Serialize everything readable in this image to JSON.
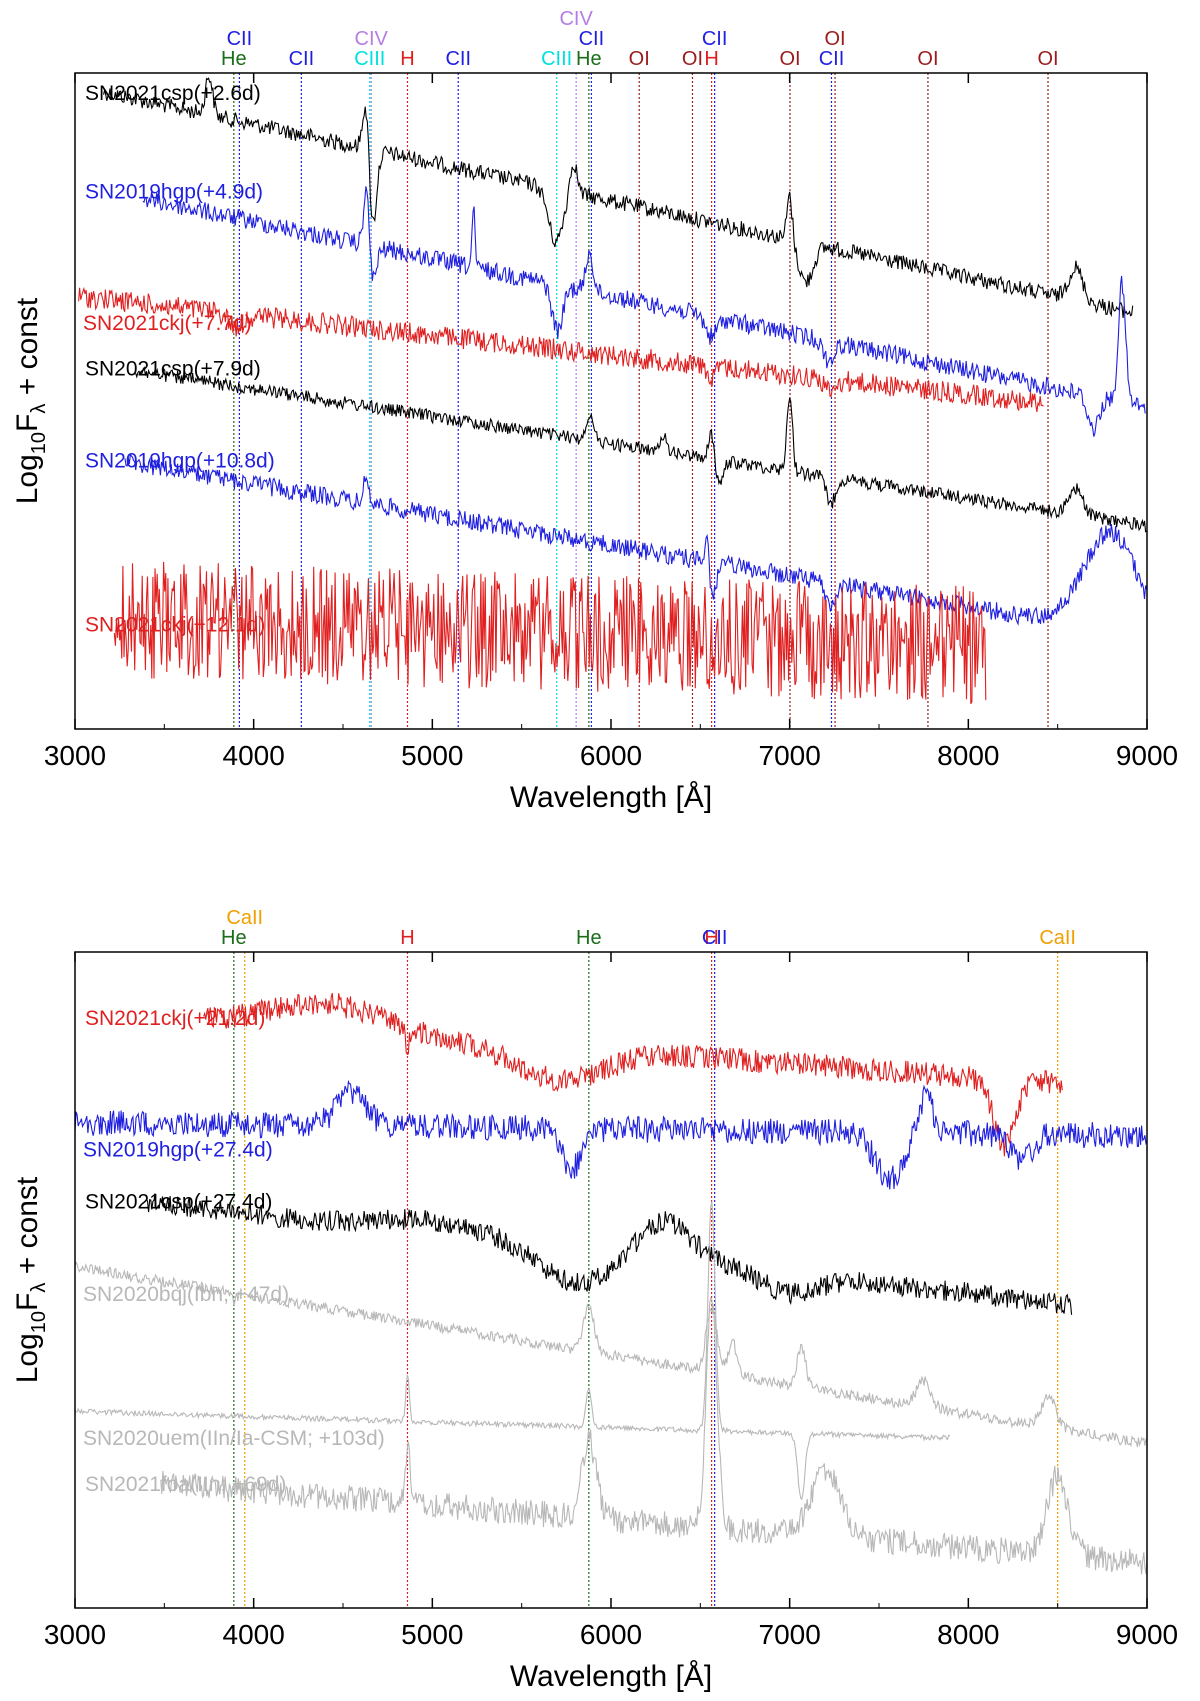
{
  "chart_data": [
    {
      "type": "line",
      "panel": "top",
      "xlabel": "Wavelength [Å]",
      "ylabel_main": "Log",
      "ylabel_sub": "10",
      "ylabel_main2": "F",
      "ylabel_sub2": "λ",
      "ylabel_tail": " + const",
      "xlim": [
        3000,
        9000
      ],
      "xticks": [
        "3000",
        "4000",
        "5000",
        "6000",
        "7000",
        "8000",
        "9000"
      ],
      "line_ids": [
        {
          "label": "He",
          "wavelength": 3889,
          "color": "#1a6e1a",
          "row": 0
        },
        {
          "label": "CII",
          "wavelength": 3920,
          "color": "#1f1fe0",
          "row": 1
        },
        {
          "label": "CII",
          "wavelength": 4267,
          "color": "#1f1fe0",
          "row": 0
        },
        {
          "label": "CIII",
          "wavelength": 4650,
          "color": "#00e0e0",
          "row": 0
        },
        {
          "label": "CIV",
          "wavelength": 4658,
          "color": "#b47ee5",
          "row": 1
        },
        {
          "label": "H",
          "wavelength": 4861,
          "color": "#e02020",
          "row": 0
        },
        {
          "label": "CII",
          "wavelength": 5145,
          "color": "#1f1fe0",
          "row": 0
        },
        {
          "label": "CIII",
          "wavelength": 5696,
          "color": "#00e0e0",
          "row": 0
        },
        {
          "label": "CIV",
          "wavelength": 5805,
          "color": "#b47ee5",
          "row": 2
        },
        {
          "label": "CII",
          "wavelength": 5890,
          "color": "#1f1fe0",
          "row": 1
        },
        {
          "label": "He",
          "wavelength": 5876,
          "color": "#1a6e1a",
          "row": 0
        },
        {
          "label": "OI",
          "wavelength": 6158,
          "color": "#9b1c1c",
          "row": 0
        },
        {
          "label": "OI",
          "wavelength": 6456,
          "color": "#9b1c1c",
          "row": 0
        },
        {
          "label": "H",
          "wavelength": 6563,
          "color": "#e02020",
          "row": 0
        },
        {
          "label": "CII",
          "wavelength": 6580,
          "color": "#1f1fe0",
          "row": 1
        },
        {
          "label": "OI",
          "wavelength": 7002,
          "color": "#9b1c1c",
          "row": 0
        },
        {
          "label": "CII",
          "wavelength": 7234,
          "color": "#1f1fe0",
          "row": 0
        },
        {
          "label": "OI",
          "wavelength": 7254,
          "color": "#9b1c1c",
          "row": 1
        },
        {
          "label": "OI",
          "wavelength": 7774,
          "color": "#9b1c1c",
          "row": 0
        },
        {
          "label": "OI",
          "wavelength": 8446,
          "color": "#9b1c1c",
          "row": 0
        }
      ],
      "series": [
        {
          "name": "SN2021csp(+2.6d)",
          "color": "#000000",
          "start": 3160,
          "end": 8920,
          "y_start": 0.02,
          "slope": 0.35,
          "noise": 0.012,
          "features": [
            [
              3750,
              -0.06,
              20
            ],
            [
              4630,
              -0.09,
              18
            ],
            [
              4665,
              0.12,
              22
            ],
            [
              5690,
              0.08,
              40
            ],
            [
              5790,
              -0.05,
              20
            ],
            [
              7000,
              -0.07,
              15
            ],
            [
              7090,
              0.06,
              40
            ],
            [
              8600,
              -0.05,
              40
            ]
          ]
        },
        {
          "name": "SN2019hgp(+4.9d)",
          "color": "#1f1fe0",
          "start": 3380,
          "end": 8990,
          "y_start": 0.17,
          "slope": 0.34,
          "noise": 0.014,
          "features": [
            [
              4630,
              -0.09,
              15
            ],
            [
              4670,
              0.05,
              20
            ],
            [
              5230,
              -0.09,
              8
            ],
            [
              5700,
              0.07,
              30
            ],
            [
              5880,
              -0.06,
              20
            ],
            [
              6560,
              0.03,
              30
            ],
            [
              7220,
              0.03,
              30
            ],
            [
              8700,
              0.05,
              30
            ],
            [
              8860,
              -0.18,
              20
            ]
          ]
        },
        {
          "name": "SN2021ckj(+7.7d)",
          "color": "#e02020",
          "start": 3020,
          "end": 8420,
          "y_start": 0.34,
          "slope": 0.18,
          "noise": 0.016,
          "features": [
            [
              3900,
              0.02,
              40
            ],
            [
              6563,
              0.02,
              20
            ],
            [
              7230,
              0.02,
              30
            ]
          ]
        },
        {
          "name": "SN2021csp(+7.9d)",
          "color": "#000000",
          "start": 3340,
          "end": 9000,
          "y_start": 0.44,
          "slope": 0.25,
          "noise": 0.01,
          "features": [
            [
              5880,
              -0.04,
              20
            ],
            [
              6300,
              -0.03,
              15
            ],
            [
              6563,
              -0.05,
              18
            ],
            [
              6600,
              0.04,
              25
            ],
            [
              7000,
              -0.12,
              15
            ],
            [
              7230,
              0.04,
              25
            ],
            [
              8600,
              -0.04,
              40
            ]
          ]
        },
        {
          "name": "SN2019hgp(+10.8d)",
          "color": "#1f1fe0",
          "start": 3280,
          "end": 9000,
          "y_start": 0.58,
          "slope": 0.28,
          "noise": 0.014,
          "features": [
            [
              4630,
              -0.04,
              15
            ],
            [
              6560,
              0.06,
              25
            ],
            [
              6540,
              -0.08,
              12
            ],
            [
              7230,
              0.04,
              25
            ],
            [
              8800,
              -0.15,
              150
            ]
          ]
        },
        {
          "name": "SN2021ckj(+12.1d)",
          "color": "#e02020",
          "start": 3220,
          "end": 8100,
          "y_start": 0.83,
          "slope": 0.05,
          "noise": 0.09,
          "features": []
        }
      ]
    },
    {
      "type": "line",
      "panel": "bottom",
      "xlabel": "Wavelength [Å]",
      "ylabel_main": "Log",
      "ylabel_sub": "10",
      "ylabel_main2": "F",
      "ylabel_sub2": "λ",
      "ylabel_tail": " + const",
      "xlim": [
        3000,
        9000
      ],
      "xticks": [
        "3000",
        "4000",
        "5000",
        "6000",
        "7000",
        "8000",
        "9000"
      ],
      "line_ids": [
        {
          "label": "He",
          "wavelength": 3889,
          "color": "#1a6e1a",
          "row": 0
        },
        {
          "label": "CaII",
          "wavelength": 3950,
          "color": "#f0a000",
          "row": 1
        },
        {
          "label": "H",
          "wavelength": 4861,
          "color": "#e02020",
          "row": 0
        },
        {
          "label": "He",
          "wavelength": 5876,
          "color": "#1a6e1a",
          "row": 0
        },
        {
          "label": "H",
          "wavelength": 6563,
          "color": "#e02020",
          "row": 0
        },
        {
          "label": "CII",
          "wavelength": 6580,
          "color": "#1f1fe0",
          "row": 0
        },
        {
          "label": "CaII",
          "wavelength": 8500,
          "color": "#f0a000",
          "row": 0
        }
      ],
      "series": [
        {
          "name": "SN2021ckj(+21.2d)",
          "color": "#e02020",
          "start": 3720,
          "end": 8530,
          "y_start": 0.09,
          "slope": 0.12,
          "noise": 0.018,
          "features": [
            [
              4400,
              -0.04,
              300
            ],
            [
              5700,
              0.05,
              250
            ],
            [
              4861,
              0.05,
              8
            ],
            [
              8200,
              0.1,
              60
            ]
          ]
        },
        {
          "name": "SN2019hgp(+27.4d)",
          "color": "#1f1fe0",
          "start": 3000,
          "end": 9000,
          "y_start": 0.26,
          "slope": 0.02,
          "noise": 0.02,
          "features": [
            [
              4550,
              -0.05,
              80
            ],
            [
              5780,
              0.06,
              60
            ],
            [
              6550,
              0.0,
              40
            ],
            [
              7560,
              0.07,
              80
            ],
            [
              7760,
              -0.06,
              40
            ],
            [
              8300,
              0.04,
              60
            ]
          ]
        },
        {
          "name": "SN2021csp(+27.4d)",
          "color": "#000000",
          "start": 3400,
          "end": 8580,
          "y_start": 0.37,
          "slope": 0.18,
          "noise": 0.016,
          "features": [
            [
              5000,
              -0.02,
              300
            ],
            [
              5800,
              0.05,
              200
            ],
            [
              6300,
              -0.06,
              150
            ],
            [
              7000,
              0.03,
              150
            ]
          ]
        },
        {
          "name": "SN2020bqj(Ibn; +47d)",
          "color": "#b8b8b8",
          "start": 3000,
          "end": 9000,
          "y_start": 0.48,
          "slope": 0.27,
          "noise": 0.008,
          "features": [
            [
              3889,
              0.01,
              20
            ],
            [
              5876,
              -0.07,
              30
            ],
            [
              6563,
              -0.1,
              30
            ],
            [
              6680,
              -0.05,
              25
            ],
            [
              7065,
              -0.06,
              25
            ],
            [
              7750,
              -0.04,
              40
            ],
            [
              8450,
              -0.05,
              40
            ]
          ]
        },
        {
          "name": "SN2020uem(IIn/Ia-CSM; +103d)",
          "color": "#b8b8b8",
          "start": 3000,
          "end": 7900,
          "y_start": 0.7,
          "slope": 0.05,
          "noise": 0.004,
          "features": [
            [
              4861,
              -0.07,
              10
            ],
            [
              5876,
              -0.06,
              15
            ],
            [
              6563,
              -0.35,
              20
            ],
            [
              7065,
              0.1,
              20
            ]
          ]
        },
        {
          "name": "SN2021foa(IIn; +69d)",
          "color": "#b8b8b8",
          "start": 3480,
          "end": 9000,
          "y_start": 0.8,
          "slope": 0.13,
          "noise": 0.02,
          "features": [
            [
              4861,
              -0.08,
              15
            ],
            [
              5876,
              -0.12,
              40
            ],
            [
              6563,
              -0.35,
              30
            ],
            [
              7200,
              -0.1,
              80
            ],
            [
              8500,
              -0.12,
              60
            ]
          ]
        }
      ]
    }
  ]
}
